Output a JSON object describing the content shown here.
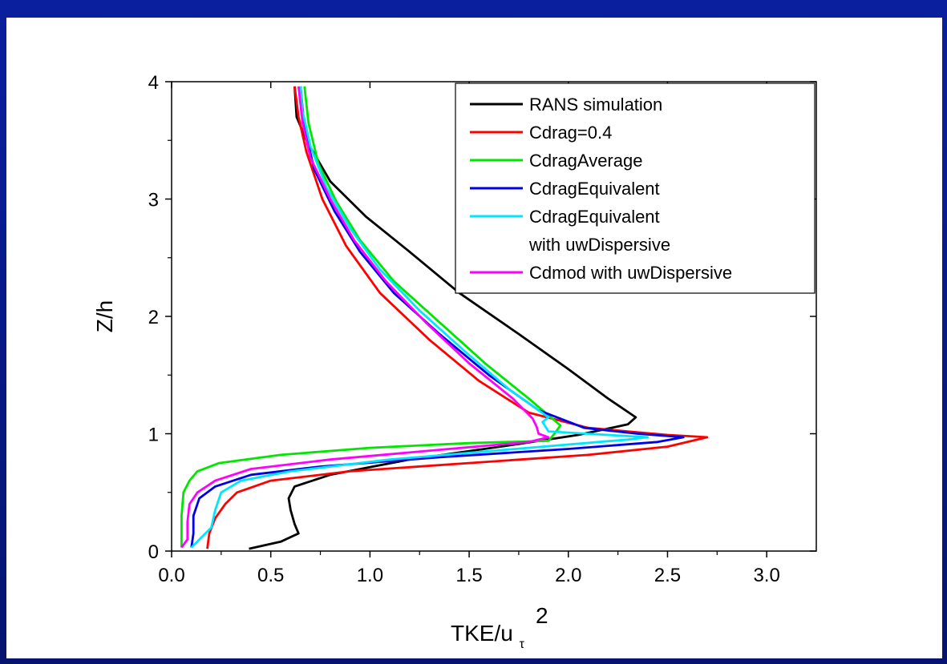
{
  "chart_data": {
    "type": "line",
    "xlabel": "TKE/u",
    "xlabel_sub": "τ",
    "xlabel_sup": "2",
    "ylabel": "Z/h",
    "xlim": [
      0.0,
      3.25
    ],
    "ylim": [
      0,
      4
    ],
    "x_ticks": [
      "0.0",
      "0.5",
      "1.0",
      "1.5",
      "2.0",
      "2.5",
      "3.0"
    ],
    "x_tick_values": [
      0.0,
      0.5,
      1.0,
      1.5,
      2.0,
      2.5,
      3.0
    ],
    "y_ticks": [
      "0",
      "1",
      "2",
      "3",
      "4"
    ],
    "y_tick_values": [
      0,
      1,
      2,
      3,
      4
    ],
    "legend_position": "top-right",
    "series": [
      {
        "name": "RANS simulation",
        "color": "#000000",
        "points": [
          [
            0.39,
            0.02
          ],
          [
            0.55,
            0.08
          ],
          [
            0.64,
            0.15
          ],
          [
            0.62,
            0.23
          ],
          [
            0.6,
            0.35
          ],
          [
            0.59,
            0.45
          ],
          [
            0.62,
            0.55
          ],
          [
            0.8,
            0.65
          ],
          [
            1.2,
            0.78
          ],
          [
            1.7,
            0.9
          ],
          [
            2.05,
            0.99
          ],
          [
            2.3,
            1.08
          ],
          [
            2.34,
            1.14
          ],
          [
            2.2,
            1.3
          ],
          [
            2.0,
            1.55
          ],
          [
            1.75,
            1.85
          ],
          [
            1.45,
            2.2
          ],
          [
            1.2,
            2.55
          ],
          [
            0.98,
            2.85
          ],
          [
            0.8,
            3.15
          ],
          [
            0.68,
            3.5
          ],
          [
            0.63,
            3.7
          ],
          [
            0.62,
            3.96
          ]
        ]
      },
      {
        "name": "Cdrag=0.4",
        "color": "#ff0000",
        "points": [
          [
            0.18,
            0.02
          ],
          [
            0.19,
            0.15
          ],
          [
            0.22,
            0.28
          ],
          [
            0.27,
            0.4
          ],
          [
            0.33,
            0.5
          ],
          [
            0.5,
            0.6
          ],
          [
            0.9,
            0.68
          ],
          [
            1.5,
            0.75
          ],
          [
            2.1,
            0.82
          ],
          [
            2.5,
            0.89
          ],
          [
            2.7,
            0.97
          ],
          [
            2.5,
            0.99
          ],
          [
            2.1,
            1.05
          ],
          [
            1.8,
            1.18
          ],
          [
            1.55,
            1.45
          ],
          [
            1.3,
            1.8
          ],
          [
            1.05,
            2.2
          ],
          [
            0.88,
            2.6
          ],
          [
            0.76,
            3.0
          ],
          [
            0.68,
            3.4
          ],
          [
            0.64,
            3.7
          ],
          [
            0.62,
            3.96
          ]
        ]
      },
      {
        "name": "CdragAverage",
        "color": "#00e600",
        "points": [
          [
            0.05,
            0.03
          ],
          [
            0.05,
            0.15
          ],
          [
            0.05,
            0.3
          ],
          [
            0.06,
            0.5
          ],
          [
            0.09,
            0.6
          ],
          [
            0.13,
            0.68
          ],
          [
            0.24,
            0.75
          ],
          [
            0.55,
            0.82
          ],
          [
            1.0,
            0.88
          ],
          [
            1.5,
            0.92
          ],
          [
            1.9,
            0.94
          ],
          [
            1.93,
            1.0
          ],
          [
            1.96,
            1.07
          ],
          [
            1.8,
            1.3
          ],
          [
            1.58,
            1.6
          ],
          [
            1.35,
            1.95
          ],
          [
            1.12,
            2.3
          ],
          [
            0.95,
            2.65
          ],
          [
            0.83,
            2.98
          ],
          [
            0.74,
            3.3
          ],
          [
            0.69,
            3.65
          ],
          [
            0.67,
            3.96
          ]
        ]
      },
      {
        "name": "CdragEquivalent",
        "color": "#0000e6",
        "points": [
          [
            0.1,
            0.03
          ],
          [
            0.11,
            0.15
          ],
          [
            0.11,
            0.3
          ],
          [
            0.14,
            0.45
          ],
          [
            0.22,
            0.55
          ],
          [
            0.4,
            0.65
          ],
          [
            0.75,
            0.72
          ],
          [
            1.35,
            0.8
          ],
          [
            2.0,
            0.87
          ],
          [
            2.45,
            0.93
          ],
          [
            2.58,
            0.97
          ],
          [
            2.35,
            1.0
          ],
          [
            2.08,
            1.05
          ],
          [
            1.85,
            1.2
          ],
          [
            1.6,
            1.5
          ],
          [
            1.35,
            1.85
          ],
          [
            1.12,
            2.2
          ],
          [
            0.95,
            2.55
          ],
          [
            0.82,
            2.9
          ],
          [
            0.72,
            3.25
          ],
          [
            0.67,
            3.6
          ],
          [
            0.65,
            3.96
          ]
        ]
      },
      {
        "name": "CdragEquivalent with uwDispersive",
        "color": "#00e5ff",
        "points": [
          [
            0.1,
            0.03
          ],
          [
            0.17,
            0.15
          ],
          [
            0.2,
            0.2
          ],
          [
            0.22,
            0.35
          ],
          [
            0.25,
            0.5
          ],
          [
            0.35,
            0.6
          ],
          [
            0.6,
            0.68
          ],
          [
            1.1,
            0.78
          ],
          [
            1.8,
            0.88
          ],
          [
            2.3,
            0.95
          ],
          [
            2.4,
            0.97
          ],
          [
            2.2,
            0.99
          ],
          [
            1.9,
            1.02
          ],
          [
            1.87,
            1.1
          ],
          [
            1.9,
            1.14
          ],
          [
            1.7,
            1.38
          ],
          [
            1.48,
            1.7
          ],
          [
            1.25,
            2.05
          ],
          [
            1.05,
            2.4
          ],
          [
            0.9,
            2.75
          ],
          [
            0.78,
            3.1
          ],
          [
            0.7,
            3.45
          ],
          [
            0.66,
            3.75
          ],
          [
            0.65,
            3.96
          ]
        ]
      },
      {
        "name": "Cdmod with uwDispersive",
        "color": "#ff00ff",
        "points": [
          [
            0.05,
            0.03
          ],
          [
            0.08,
            0.1
          ],
          [
            0.08,
            0.25
          ],
          [
            0.09,
            0.4
          ],
          [
            0.13,
            0.5
          ],
          [
            0.22,
            0.6
          ],
          [
            0.4,
            0.7
          ],
          [
            0.8,
            0.78
          ],
          [
            1.4,
            0.87
          ],
          [
            1.8,
            0.93
          ],
          [
            1.9,
            0.97
          ],
          [
            1.85,
            1.0
          ],
          [
            1.84,
            1.06
          ],
          [
            1.82,
            1.13
          ],
          [
            1.72,
            1.3
          ],
          [
            1.5,
            1.6
          ],
          [
            1.28,
            1.95
          ],
          [
            1.08,
            2.3
          ],
          [
            0.92,
            2.65
          ],
          [
            0.8,
            3.0
          ],
          [
            0.7,
            3.35
          ],
          [
            0.66,
            3.65
          ],
          [
            0.64,
            3.96
          ]
        ]
      }
    ],
    "legend": [
      {
        "lines": [
          "RANS simulation"
        ],
        "color": "#000000"
      },
      {
        "lines": [
          "Cdrag=0.4"
        ],
        "color": "#ff0000"
      },
      {
        "lines": [
          "CdragAverage"
        ],
        "color": "#00e600"
      },
      {
        "lines": [
          "CdragEquivalent"
        ],
        "color": "#0000e6"
      },
      {
        "lines": [
          "CdragEquivalent",
          "with uwDispersive"
        ],
        "color": "#00e5ff"
      },
      {
        "lines": [
          "Cdmod with uwDispersive"
        ],
        "color": "#ff00ff"
      }
    ]
  }
}
